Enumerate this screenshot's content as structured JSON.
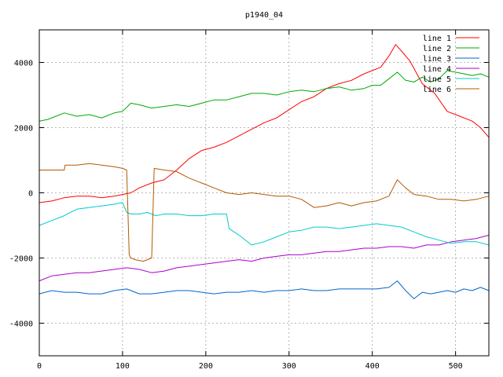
{
  "chart_data": {
    "type": "line",
    "title": "p1940_04",
    "xlabel": "",
    "ylabel": "",
    "xlim": [
      0,
      540
    ],
    "ylim": [
      -5000,
      5000
    ],
    "xticks": [
      0,
      100,
      200,
      300,
      400,
      500
    ],
    "yticks": [
      -4000,
      -2000,
      0,
      2000,
      4000
    ],
    "grid": true,
    "legend_position": "top-right",
    "series": [
      {
        "name": "line 1",
        "color": "#ff0000",
        "x": [
          0,
          15,
          30,
          45,
          60,
          75,
          90,
          100,
          110,
          120,
          135,
          150,
          165,
          180,
          195,
          210,
          225,
          240,
          255,
          270,
          285,
          300,
          315,
          330,
          345,
          360,
          375,
          390,
          400,
          410,
          420,
          428,
          435,
          445,
          460,
          475,
          490,
          505,
          520,
          530,
          540
        ],
        "values": [
          -300,
          -250,
          -150,
          -100,
          -100,
          -150,
          -100,
          -50,
          0,
          150,
          300,
          400,
          700,
          1050,
          1300,
          1400,
          1550,
          1750,
          1950,
          2150,
          2300,
          2550,
          2800,
          2950,
          3200,
          3350,
          3450,
          3650,
          3750,
          3850,
          4200,
          4550,
          4350,
          4050,
          3350,
          3050,
          2500,
          2350,
          2200,
          2000,
          1700
        ]
      },
      {
        "name": "line 2",
        "color": "#00aa00",
        "x": [
          0,
          10,
          20,
          30,
          45,
          60,
          75,
          90,
          100,
          110,
          120,
          135,
          150,
          165,
          180,
          195,
          210,
          225,
          240,
          255,
          270,
          285,
          300,
          315,
          330,
          345,
          360,
          375,
          390,
          400,
          410,
          420,
          430,
          440,
          450,
          460,
          470,
          480,
          490,
          500,
          510,
          520,
          530,
          540
        ],
        "values": [
          2200,
          2250,
          2350,
          2450,
          2350,
          2400,
          2300,
          2450,
          2500,
          2750,
          2700,
          2600,
          2650,
          2700,
          2650,
          2750,
          2850,
          2850,
          2950,
          3050,
          3050,
          3000,
          3100,
          3150,
          3100,
          3200,
          3250,
          3150,
          3200,
          3300,
          3300,
          3500,
          3700,
          3450,
          3400,
          3550,
          3400,
          3500,
          3750,
          3700,
          3650,
          3600,
          3650,
          3550
        ]
      },
      {
        "name": "line 3",
        "color": "#0066cc",
        "x": [
          0,
          15,
          30,
          45,
          60,
          75,
          90,
          105,
          120,
          135,
          150,
          165,
          180,
          195,
          210,
          225,
          240,
          255,
          270,
          285,
          300,
          315,
          330,
          345,
          360,
          375,
          390,
          405,
          420,
          430,
          440,
          450,
          460,
          470,
          480,
          490,
          500,
          510,
          520,
          530,
          540
        ],
        "values": [
          -3100,
          -3000,
          -3050,
          -3050,
          -3100,
          -3100,
          -3000,
          -2950,
          -3100,
          -3100,
          -3050,
          -3000,
          -3000,
          -3050,
          -3100,
          -3050,
          -3050,
          -3000,
          -3050,
          -3000,
          -3000,
          -2950,
          -3000,
          -3000,
          -2950,
          -2950,
          -2950,
          -2950,
          -2900,
          -2700,
          -3000,
          -3250,
          -3050,
          -3100,
          -3050,
          -3000,
          -3050,
          -2950,
          -3000,
          -2900,
          -3000
        ]
      },
      {
        "name": "line 4",
        "color": "#aa00cc",
        "x": [
          0,
          15,
          30,
          45,
          60,
          75,
          90,
          105,
          120,
          135,
          150,
          165,
          180,
          195,
          210,
          225,
          240,
          255,
          270,
          285,
          300,
          315,
          330,
          345,
          360,
          375,
          390,
          405,
          420,
          435,
          450,
          465,
          480,
          495,
          510,
          525,
          540
        ],
        "values": [
          -2700,
          -2550,
          -2500,
          -2450,
          -2450,
          -2400,
          -2350,
          -2300,
          -2350,
          -2450,
          -2400,
          -2300,
          -2250,
          -2200,
          -2150,
          -2100,
          -2050,
          -2100,
          -2000,
          -1950,
          -1900,
          -1900,
          -1850,
          -1800,
          -1800,
          -1750,
          -1700,
          -1700,
          -1650,
          -1650,
          -1700,
          -1600,
          -1600,
          -1500,
          -1450,
          -1400,
          -1300
        ]
      },
      {
        "name": "line 5",
        "color": "#00cccc",
        "x": [
          0,
          15,
          30,
          45,
          60,
          75,
          90,
          100,
          105,
          110,
          120,
          130,
          140,
          150,
          165,
          180,
          195,
          210,
          225,
          228,
          240,
          255,
          270,
          285,
          300,
          315,
          330,
          345,
          360,
          375,
          390,
          405,
          420,
          435,
          450,
          465,
          480,
          495,
          510,
          525,
          540
        ],
        "values": [
          -1000,
          -850,
          -700,
          -500,
          -450,
          -400,
          -350,
          -300,
          -600,
          -650,
          -650,
          -600,
          -700,
          -650,
          -650,
          -700,
          -700,
          -650,
          -650,
          -1100,
          -1300,
          -1600,
          -1500,
          -1350,
          -1200,
          -1150,
          -1050,
          -1050,
          -1100,
          -1050,
          -1000,
          -950,
          -1000,
          -1050,
          -1200,
          -1350,
          -1450,
          -1550,
          -1500,
          -1500,
          -1600
        ]
      },
      {
        "name": "line 6",
        "color": "#b35900",
        "x": [
          0,
          15,
          30,
          31,
          45,
          60,
          75,
          90,
          100,
          105,
          108,
          110,
          115,
          125,
          135,
          138,
          150,
          165,
          180,
          195,
          210,
          225,
          240,
          255,
          270,
          285,
          300,
          315,
          330,
          345,
          360,
          375,
          390,
          405,
          420,
          430,
          440,
          450,
          465,
          480,
          495,
          510,
          525,
          540
        ],
        "values": [
          700,
          700,
          700,
          850,
          850,
          900,
          850,
          800,
          750,
          700,
          -1900,
          -2000,
          -2050,
          -2100,
          -2000,
          750,
          700,
          650,
          450,
          300,
          150,
          0,
          -50,
          0,
          -50,
          -100,
          -100,
          -200,
          -450,
          -400,
          -300,
          -400,
          -300,
          -250,
          -100,
          400,
          150,
          -50,
          -100,
          -200,
          -200,
          -250,
          -200,
          -100
        ]
      }
    ]
  }
}
